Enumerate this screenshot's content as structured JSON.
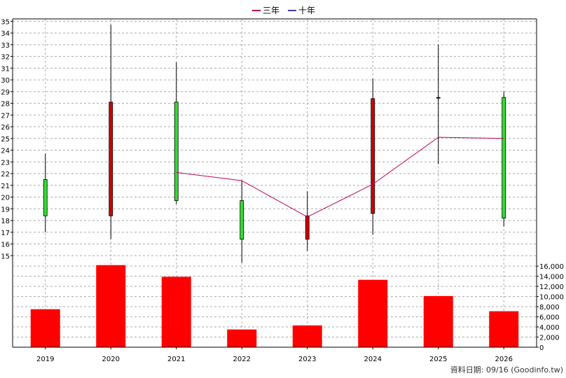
{
  "legend": {
    "items": [
      {
        "label": "三年",
        "color": "#c00060"
      },
      {
        "label": "十年",
        "color": "#4040a0"
      }
    ]
  },
  "footer": {
    "text": "資料日期: 09/16  (Goodinfo.tw)"
  },
  "colors": {
    "up": "#cc0000",
    "down": "#33dd33",
    "volume": "#ff0000",
    "ma3": "#c00060"
  },
  "chart_data": [
    {
      "type": "candlestick",
      "categories": [
        "2019",
        "2020",
        "2021",
        "2022",
        "2023",
        "2024",
        "2025",
        "2026"
      ],
      "y_ticks": [
        15,
        16,
        17,
        18,
        19,
        20,
        21,
        22,
        23,
        24,
        25,
        26,
        27,
        28,
        29,
        30,
        31,
        32,
        33,
        34,
        35
      ],
      "ylim": [
        14,
        35.2
      ],
      "grid": true,
      "candles": [
        {
          "x": "2019",
          "open": 21.5,
          "close": 18.4,
          "high": 23.7,
          "low": 17.0
        },
        {
          "x": "2020",
          "open": 18.4,
          "close": 28.1,
          "high": 34.7,
          "low": 16.4
        },
        {
          "x": "2021",
          "open": 28.1,
          "close": 19.7,
          "high": 31.5,
          "low": 19.4
        },
        {
          "x": "2022",
          "open": 19.7,
          "close": 16.4,
          "high": 21.4,
          "low": 14.4
        },
        {
          "x": "2023",
          "open": 16.4,
          "close": 18.4,
          "high": 20.5,
          "low": 15.4
        },
        {
          "x": "2024",
          "open": 18.6,
          "close": 28.4,
          "high": 30.1,
          "low": 16.8
        },
        {
          "x": "2025",
          "open": 28.5,
          "close": 28.5,
          "high": 33.0,
          "low": 22.8
        },
        {
          "x": "2026",
          "open": 28.5,
          "close": 18.2,
          "high": 29.0,
          "low": 17.5
        }
      ],
      "series": [
        {
          "name": "三年",
          "values": [
            null,
            null,
            22.1,
            21.4,
            18.3,
            21.1,
            25.1,
            25.0
          ]
        }
      ]
    },
    {
      "type": "bar",
      "categories": [
        "2019",
        "2020",
        "2021",
        "2022",
        "2023",
        "2024",
        "2025",
        "2026"
      ],
      "values": [
        7500,
        16200,
        13900,
        3500,
        4300,
        13300,
        10100,
        7100
      ],
      "y_ticks": [
        0,
        2000,
        4000,
        6000,
        8000,
        10000,
        12000,
        14000,
        16000
      ],
      "y_tick_labels": [
        "0",
        "2,000",
        "4,000",
        "6,000",
        "8,000",
        "10,000",
        "12,000",
        "14,000",
        "16,000"
      ],
      "ylim": [
        0,
        16300
      ],
      "grid": true
    }
  ]
}
